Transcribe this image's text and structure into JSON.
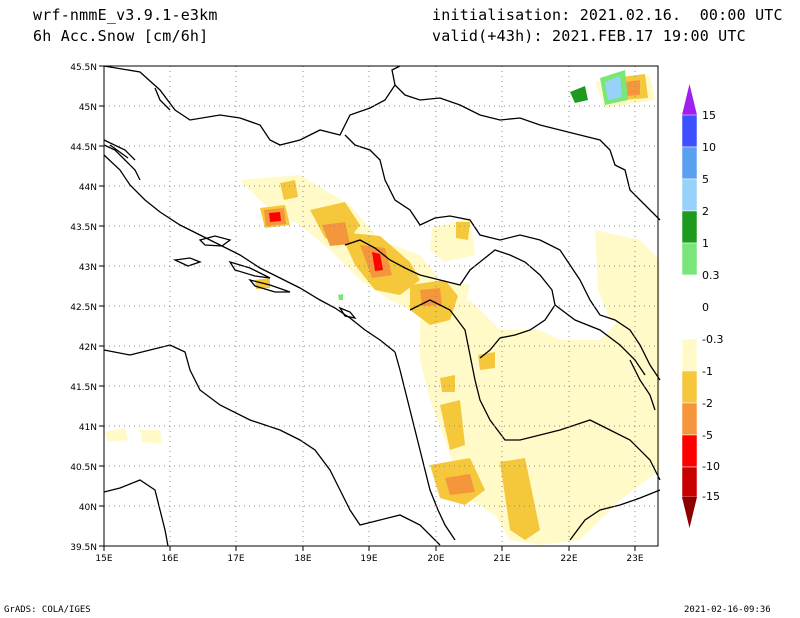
{
  "header": {
    "model": "wrf-nmmE_v3.9.1-e3km",
    "variable": "6h Acc.Snow [cm/6h]",
    "initialisation": "initialisation: 2021.02.16.  00:00 UTC",
    "valid": "valid(+43h): 2021.FEB.17 19:00 UTC"
  },
  "footer": {
    "left": "GrADS: COLA/IGES",
    "right": "2021-02-16-09:36"
  },
  "map": {
    "lon_labels": [
      "15E",
      "16E",
      "17E",
      "18E",
      "19E",
      "20E",
      "21E",
      "22E",
      "23E"
    ],
    "lat_labels": [
      "45.5N",
      "45N",
      "44.5N",
      "44N",
      "43.5N",
      "43N",
      "42.5N",
      "42N",
      "41.5N",
      "41N",
      "40.5N",
      "40N",
      "39.5N"
    ],
    "grid": "dotted"
  },
  "colorbar": {
    "labels": [
      "15",
      "10",
      "5",
      "2",
      "1",
      "0.3",
      "0",
      "-0.3",
      "-1",
      "-2",
      "-5",
      "-10",
      "-15"
    ],
    "colors": [
      "#a020f0",
      "#3c50ff",
      "#5aa0f0",
      "#96d2fa",
      "#1e9b1e",
      "#78e678",
      "#ffffff",
      "#ffffff",
      "#fffac8",
      "#f5c83c",
      "#f5963c",
      "#ff0000",
      "#c80000",
      "#8c0000"
    ]
  }
}
